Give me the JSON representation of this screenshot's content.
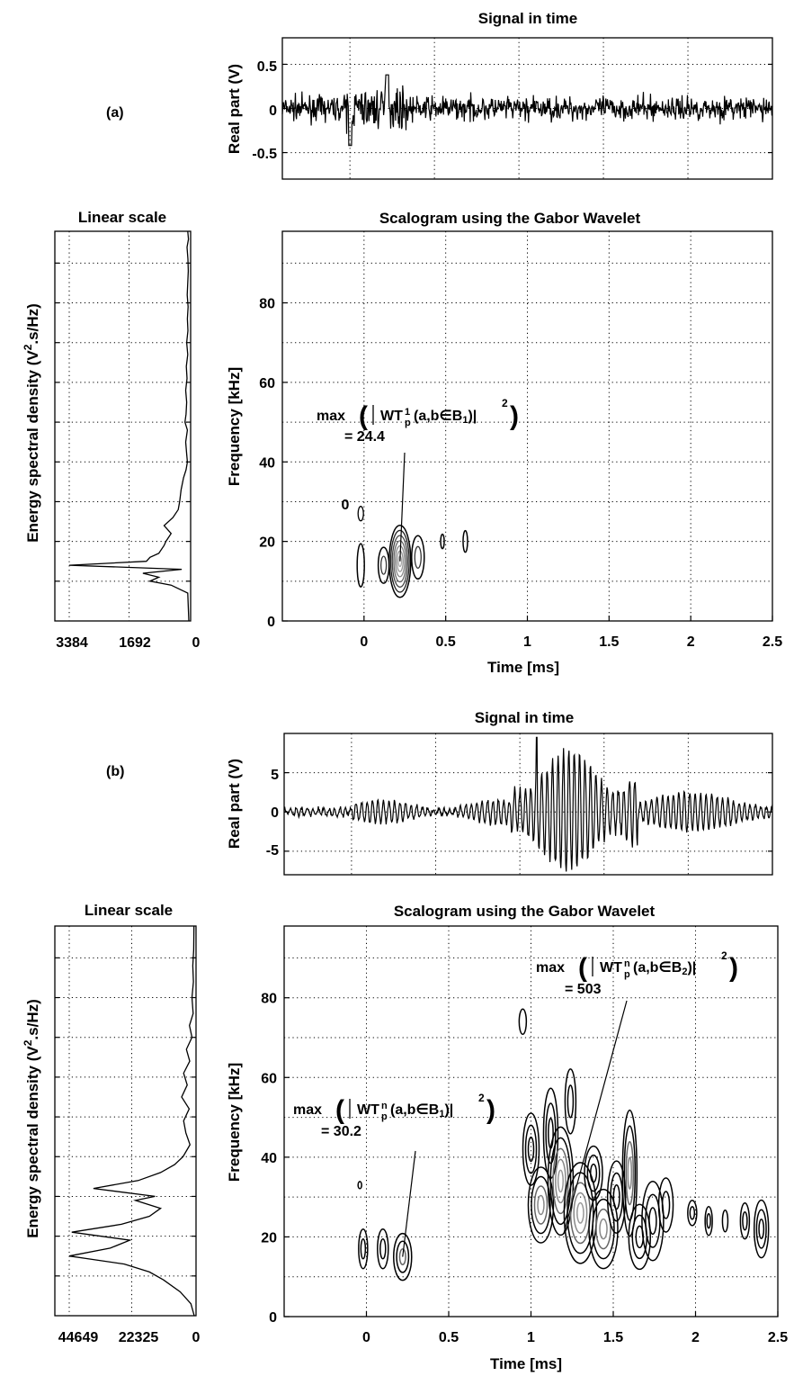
{
  "figure": {
    "panel_labels": [
      "(a)",
      "(b)"
    ]
  },
  "chart_data": [
    {
      "id": "a-signal",
      "type": "line",
      "title": "Signal in time",
      "xlabel": "",
      "ylabel": "Real part (V)",
      "xlim": [
        -0.4,
        2.5
      ],
      "ylim": [
        -0.8,
        0.8
      ],
      "yticks": [
        0.5,
        0,
        -0.5
      ],
      "ytick_labels": [
        "0.5",
        "0",
        "-0.5"
      ],
      "grid": true,
      "series": [
        {
          "values_summary": "noise around 0, amplitude ~0.2 V, burst up to ~0.4 V near t=0 to 0.3 ms",
          "color": "#000000"
        }
      ]
    },
    {
      "id": "a-esd",
      "type": "line",
      "title": "Linear scale",
      "ylabel": "Energy spectral density (V^2.s/Hz)",
      "ylabel_parts": [
        "Energy spectral density (V",
        "2",
        ".s/Hz)"
      ],
      "xticks_labels": [
        "3384",
        "1692",
        "0"
      ],
      "xlim_reversed": [
        3384,
        0
      ],
      "grid": true,
      "peak": {
        "value": 3384,
        "frequency_khz": 14
      }
    },
    {
      "id": "a-scalogram",
      "type": "contour",
      "title": "Scalogram using the Gabor Wavelet",
      "xlabel": "Time [ms]",
      "ylabel": "Frequency [kHz]",
      "xlim": [
        -0.5,
        2.5
      ],
      "ylim": [
        0,
        98
      ],
      "xticks": [
        0,
        0.5,
        1,
        1.5,
        2,
        2.5
      ],
      "xtick_labels": [
        "0",
        "0.5",
        "1",
        "1.5",
        "2",
        "2.5"
      ],
      "yticks": [
        0,
        20,
        40,
        60,
        80
      ],
      "ytick_labels": [
        "0",
        "20",
        "40",
        "60",
        "80"
      ],
      "grid": true,
      "contour_label": "0",
      "annotation": {
        "prefix": "max",
        "symbol": "WT",
        "sub": "p",
        "sup": "1",
        "args": "(a,b∈B",
        "set_sub": "1",
        "close": ")|",
        "power": "2",
        "value": "= 24.4",
        "peak_time_ms": 0.22,
        "peak_freq_khz": 15
      }
    },
    {
      "id": "b-signal",
      "type": "line",
      "title": "Signal in time",
      "xlabel": "",
      "ylabel": "Real part (V)",
      "xlim": [
        -0.4,
        2.5
      ],
      "ylim": [
        -8,
        10
      ],
      "yticks": [
        5,
        0,
        -5
      ],
      "ytick_labels": [
        "5",
        "0",
        "-5"
      ],
      "grid": true,
      "series": [
        {
          "values_summary": "low noise before 1 ms, large burst (~9 V) from 1 to 1.7 ms",
          "color": "#000000"
        }
      ]
    },
    {
      "id": "b-esd",
      "type": "line",
      "title": "Linear scale",
      "ylabel": "Energy spectral density (V^2.s/Hz)",
      "ylabel_parts": [
        "Energy spectral density (V",
        "2",
        ".s/Hz)"
      ],
      "xticks_labels": [
        "44649",
        "22325",
        "0"
      ],
      "xlim_reversed": [
        44649,
        0
      ],
      "grid": true,
      "peak": {
        "value": 44649,
        "frequency_khz": 16
      }
    },
    {
      "id": "b-scalogram",
      "type": "contour",
      "title": "Scalogram using the Gabor Wavelet",
      "xlabel": "Time [ms]",
      "ylabel": "Frequency [kHz]",
      "xlim": [
        -0.5,
        2.5
      ],
      "ylim": [
        0,
        98
      ],
      "xticks": [
        0,
        0.5,
        1,
        1.5,
        2,
        2.5
      ],
      "xtick_labels": [
        "0",
        "0.5",
        "1",
        "1.5",
        "2",
        "2.5"
      ],
      "yticks": [
        0,
        20,
        40,
        60,
        80
      ],
      "ytick_labels": [
        "0",
        "20",
        "40",
        "60",
        "80"
      ],
      "grid": true,
      "annotations": [
        {
          "prefix": "max",
          "symbol": "WT",
          "sub": "p",
          "sup": "n",
          "args": "(a,b∈B",
          "set_sub": "2",
          "close": ")|",
          "power": "2",
          "value": "= 503",
          "peak_time_ms": 1.2,
          "peak_freq_khz": 30
        },
        {
          "prefix": "max",
          "symbol": "WT",
          "sub": "p",
          "sup": "n",
          "args": "(a,b∈B",
          "set_sub": "1",
          "close": ")|",
          "power": "2",
          "value": "= 30.2",
          "peak_time_ms": 0.22,
          "peak_freq_khz": 15
        }
      ]
    }
  ]
}
